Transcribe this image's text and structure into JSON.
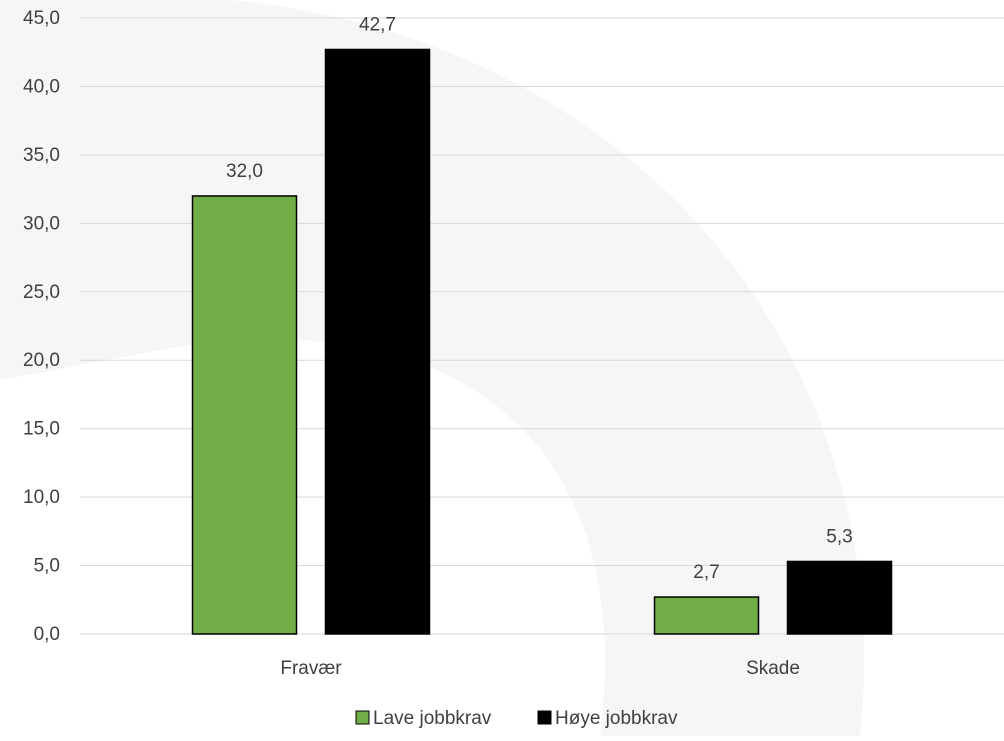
{
  "chart_data": {
    "type": "bar",
    "title": "",
    "xlabel": "",
    "ylabel": "",
    "categories": [
      "Fravær",
      "Skade"
    ],
    "series": [
      {
        "name": "Lave jobbkrav",
        "color": "#70AD47",
        "values": [
          32.0,
          2.7
        ],
        "labels": [
          "32,0",
          "2,7"
        ]
      },
      {
        "name": "Høye jobbkrav",
        "color": "#000000",
        "values": [
          42.7,
          5.3
        ],
        "labels": [
          "42,7",
          "5,3"
        ]
      }
    ],
    "ylim": [
      0,
      45
    ],
    "yticks": [
      0,
      5,
      10,
      15,
      20,
      25,
      30,
      35,
      40,
      45
    ],
    "ytick_labels": [
      "0,0",
      "5,0",
      "10,0",
      "15,0",
      "20,0",
      "25,0",
      "30,0",
      "35,0",
      "40,0",
      "45,0"
    ],
    "grid": true,
    "legend_position": "bottom"
  }
}
